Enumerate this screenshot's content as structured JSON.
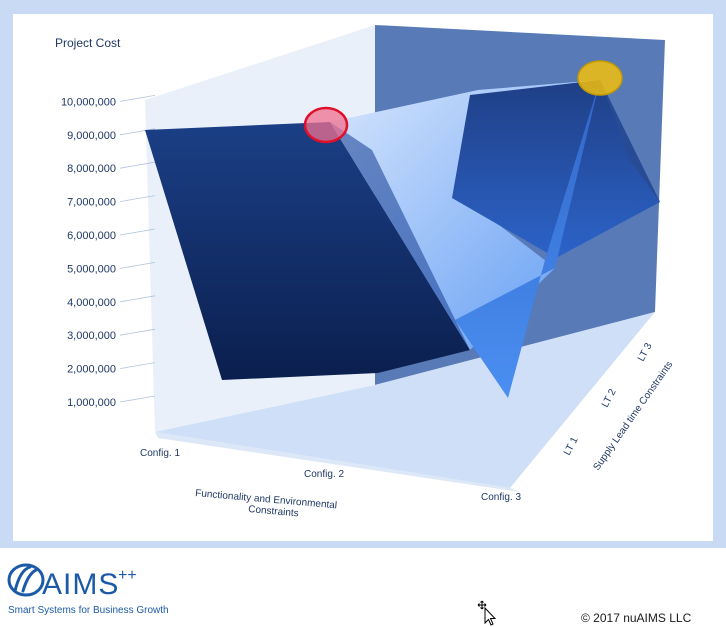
{
  "chart_data": {
    "type": "surface-3d",
    "ylabel": "Project Cost",
    "xlabel_line1": "Functionality and  Environmental",
    "xlabel_line2": "Constraints",
    "zlabel": "Supply Lead time Constraints",
    "y_ticks": [
      "1,000,000",
      "2,000,000",
      "3,000,000",
      "4,000,000",
      "5,000,000",
      "6,000,000",
      "7,000,000",
      "8,000,000",
      "9,000,000",
      "10,000,000"
    ],
    "ylim": [
      0,
      10000000
    ],
    "categories": [
      "Config. 1",
      "Config. 2",
      "Config. 3"
    ],
    "depth_categories": [
      "LT 1",
      "LT 2",
      "LT 3"
    ],
    "series": [
      {
        "values": [
          2000000,
          2300000,
          1000000
        ]
      },
      {
        "values": [
          9300000,
          8000000,
          4500000
        ]
      },
      {
        "values": [
          9400000,
          10200000,
          7000000
        ]
      }
    ],
    "highlights": [
      {
        "config": "Config. 2",
        "lead_time": "LT 1",
        "color": "#e0102a"
      },
      {
        "config": "Config. 3",
        "lead_time": "LT 3",
        "color": "#f2c00c"
      }
    ],
    "colors": {
      "frame": "#c9daf4",
      "back_wall": "#4f74b4",
      "floor": "#cfdff7",
      "surface_dark": "#123070",
      "surface_light": "#4a8ef0"
    }
  },
  "footer": {
    "logo_text": "AIMS",
    "logo_plus": "++",
    "tagline": "Smart Systems for Business Growth",
    "copyright": "© 2017 nuAIMS LLC"
  }
}
